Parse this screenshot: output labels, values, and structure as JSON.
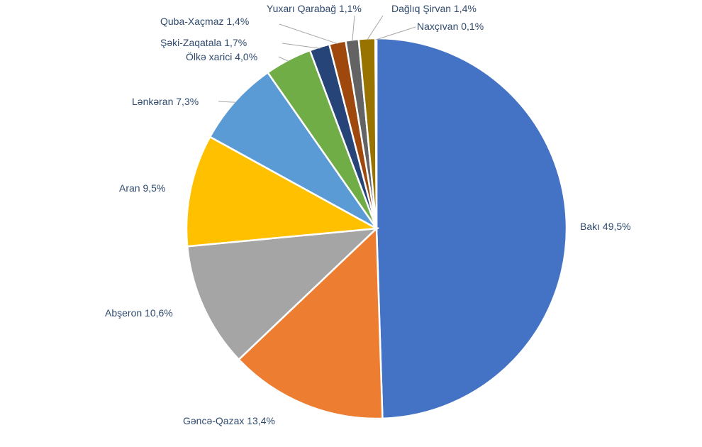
{
  "chart_data": {
    "type": "pie",
    "title": "",
    "slices": [
      {
        "label": "Bakı",
        "value": 49.5,
        "display": "Bakı  49,5%",
        "color": "#4472c4"
      },
      {
        "label": "Gəncə-Qazax",
        "value": 13.4,
        "display": "Gəncə-Qazax 13,4%",
        "color": "#ed7d31"
      },
      {
        "label": "Abşeron",
        "value": 10.6,
        "display": "Abşeron 10,6%",
        "color": "#a5a5a5"
      },
      {
        "label": "Aran",
        "value": 9.5,
        "display": "Aran 9,5%",
        "color": "#ffc000"
      },
      {
        "label": "Lənkəran",
        "value": 7.3,
        "display": "Lənkəran 7,3%",
        "color": "#5b9bd5"
      },
      {
        "label": "Ölkə xarici",
        "value": 4.0,
        "display": "Ölkə xarici 4,0%",
        "color": "#70ad47"
      },
      {
        "label": "Şəki-Zaqatala",
        "value": 1.7,
        "display": "Şəki-Zaqatala 1,7%",
        "color": "#264478"
      },
      {
        "label": "Quba-Xaçmaz",
        "value": 1.4,
        "display": "Quba-Xaçmaz 1,4%",
        "color": "#9e480e"
      },
      {
        "label": "Yuxarı Qarabağ",
        "value": 1.1,
        "display": "Yuxarı Qarabağ 1,1%",
        "color": "#636363"
      },
      {
        "label": "Dağlıq Şirvan",
        "value": 1.4,
        "display": "Dağlıq Şirvan 1,4%",
        "color": "#997300"
      },
      {
        "label": "Naxçıvan",
        "value": 0.1,
        "display": "Naxçıvan 0,1%",
        "color": "#c9a227"
      }
    ],
    "legend": "none"
  }
}
